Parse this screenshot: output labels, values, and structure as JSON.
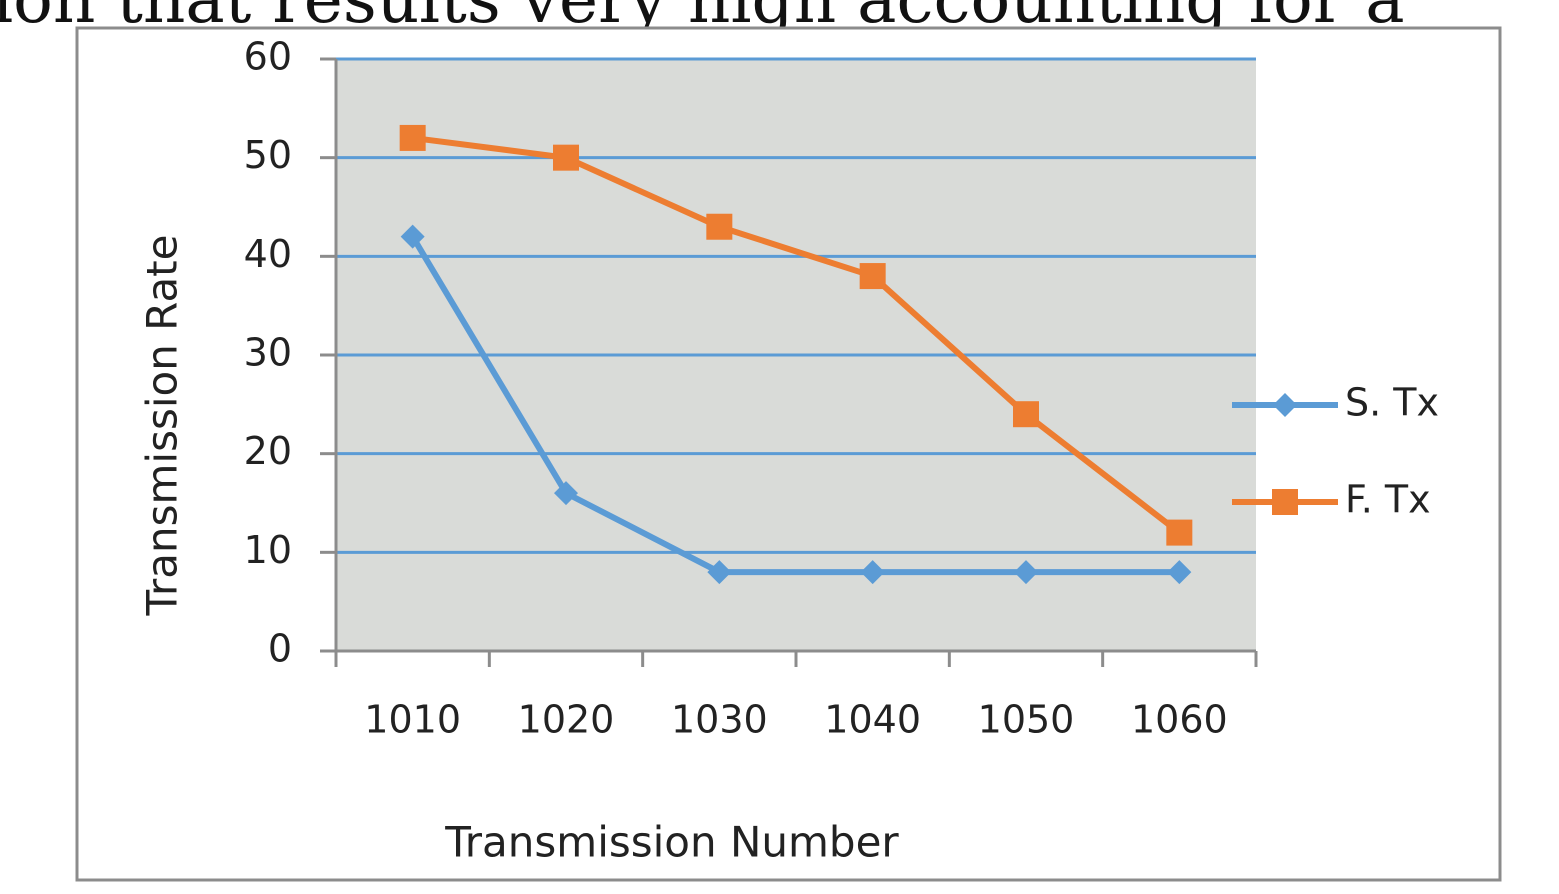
{
  "document": {
    "text": "ion that results very high accounting for a"
  },
  "chart_data": {
    "type": "line",
    "x_label": "Transmission Number",
    "y_label": "Transmission Rate",
    "categories": [
      "1010",
      "1020",
      "1030",
      "1040",
      "1050",
      "1060"
    ],
    "series": [
      {
        "name": "S. Tx",
        "color": "#5b9bd5",
        "marker": "diamond",
        "values": [
          42,
          16,
          8,
          8,
          8,
          8
        ]
      },
      {
        "name": "F. Tx",
        "color": "#ed7d31",
        "marker": "square",
        "values": [
          52,
          50,
          43,
          38,
          24,
          12
        ]
      }
    ],
    "ylim": [
      0,
      60
    ],
    "yticks": [
      0,
      10,
      20,
      30,
      40,
      50,
      60
    ],
    "grid": true,
    "legend": "right"
  }
}
